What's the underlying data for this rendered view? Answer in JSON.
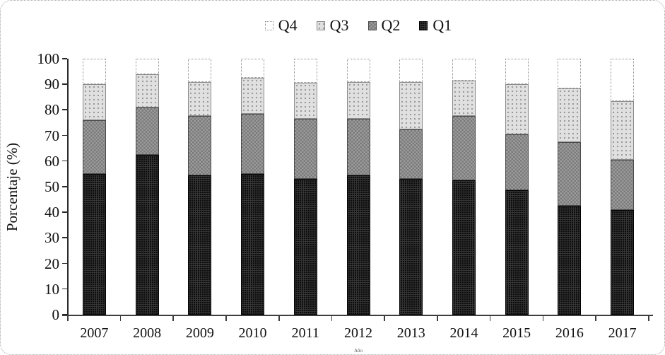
{
  "chart_data": {
    "type": "bar",
    "stacked": true,
    "percent_stacked": true,
    "title": "",
    "xlabel": "Año",
    "ylabel": "Porcentaje (%)",
    "ylim": [
      0,
      100
    ],
    "ytick_step": 10,
    "yticks": [
      0,
      10,
      20,
      30,
      40,
      50,
      60,
      70,
      80,
      90,
      100
    ],
    "grid": false,
    "categories": [
      "2007",
      "2008",
      "2009",
      "2010",
      "2011",
      "2012",
      "2013",
      "2014",
      "2015",
      "2016",
      "2017"
    ],
    "series": [
      {
        "name": "Q1",
        "color": "#0c0c0c",
        "pattern": "dark-grid",
        "values": [
          55.0,
          62.5,
          54.5,
          55.0,
          53.0,
          54.5,
          53.0,
          52.5,
          48.5,
          42.5,
          41.0
        ]
      },
      {
        "name": "Q2",
        "color": "#8c8c8c",
        "pattern": "checker",
        "values": [
          21.0,
          18.5,
          23.0,
          23.5,
          23.5,
          22.0,
          19.5,
          25.0,
          22.0,
          25.0,
          19.5
        ]
      },
      {
        "name": "Q3",
        "color": "#dcdcdc",
        "pattern": "light-dots",
        "values": [
          14.0,
          13.0,
          13.5,
          14.0,
          14.0,
          14.5,
          18.5,
          14.0,
          19.5,
          21.0,
          23.0
        ]
      },
      {
        "name": "Q4",
        "color": "#ffffff",
        "pattern": "plain-white",
        "values": [
          10.0,
          6.0,
          9.0,
          7.5,
          9.5,
          9.0,
          9.0,
          8.5,
          10.0,
          11.5,
          16.5
        ]
      }
    ],
    "legend": {
      "position": "top",
      "order": [
        "Q4",
        "Q3",
        "Q2",
        "Q1"
      ]
    }
  }
}
